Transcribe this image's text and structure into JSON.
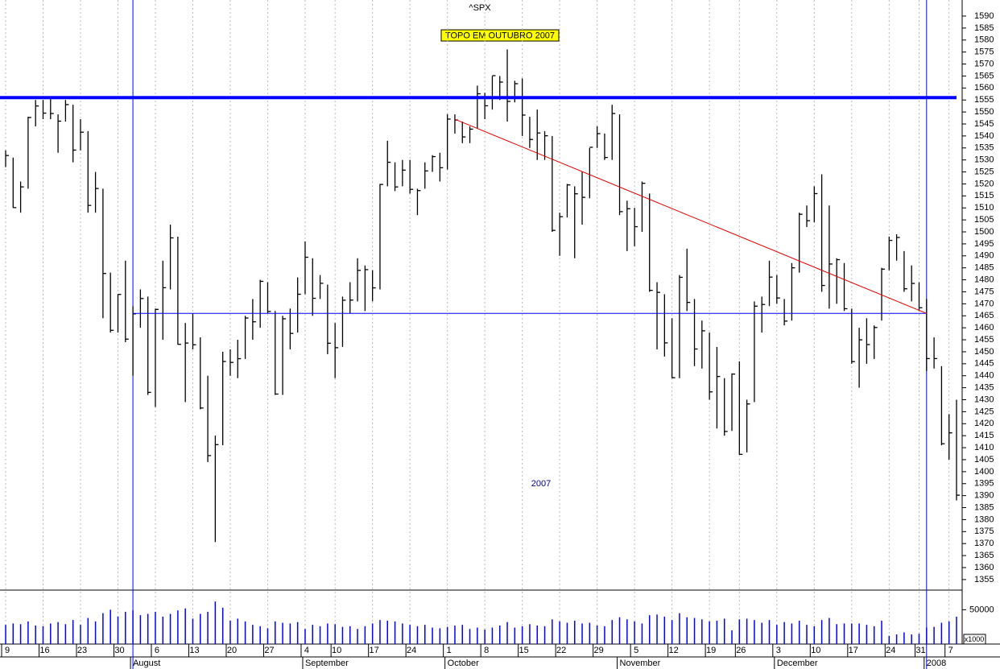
{
  "chart_data": {
    "type": "ohlc",
    "title": "^SPX",
    "annotation": "TOPO EM OUTUBRO 2007",
    "year_label": "2007",
    "volume_unit": "x1000",
    "x": [
      "2007-07-09",
      "2007-07-10",
      "2007-07-11",
      "2007-07-12",
      "2007-07-13",
      "2007-07-16",
      "2007-07-17",
      "2007-07-18",
      "2007-07-19",
      "2007-07-20",
      "2007-07-23",
      "2007-07-24",
      "2007-07-25",
      "2007-07-26",
      "2007-07-27",
      "2007-07-30",
      "2007-07-31",
      "2007-08-01",
      "2007-08-02",
      "2007-08-03",
      "2007-08-06",
      "2007-08-07",
      "2007-08-08",
      "2007-08-09",
      "2007-08-10",
      "2007-08-13",
      "2007-08-14",
      "2007-08-15",
      "2007-08-16",
      "2007-08-17",
      "2007-08-20",
      "2007-08-21",
      "2007-08-22",
      "2007-08-23",
      "2007-08-24",
      "2007-08-27",
      "2007-08-28",
      "2007-08-29",
      "2007-08-30",
      "2007-08-31",
      "2007-09-04",
      "2007-09-05",
      "2007-09-06",
      "2007-09-07",
      "2007-09-10",
      "2007-09-11",
      "2007-09-12",
      "2007-09-13",
      "2007-09-14",
      "2007-09-17",
      "2007-09-18",
      "2007-09-19",
      "2007-09-20",
      "2007-09-21",
      "2007-09-24",
      "2007-09-25",
      "2007-09-26",
      "2007-09-27",
      "2007-09-28",
      "2007-10-01",
      "2007-10-02",
      "2007-10-03",
      "2007-10-04",
      "2007-10-05",
      "2007-10-08",
      "2007-10-09",
      "2007-10-10",
      "2007-10-11",
      "2007-10-12",
      "2007-10-15",
      "2007-10-16",
      "2007-10-17",
      "2007-10-18",
      "2007-10-19",
      "2007-10-22",
      "2007-10-23",
      "2007-10-24",
      "2007-10-25",
      "2007-10-26",
      "2007-10-29",
      "2007-10-30",
      "2007-10-31",
      "2007-11-01",
      "2007-11-02",
      "2007-11-05",
      "2007-11-06",
      "2007-11-07",
      "2007-11-08",
      "2007-11-09",
      "2007-11-12",
      "2007-11-13",
      "2007-11-14",
      "2007-11-15",
      "2007-11-16",
      "2007-11-19",
      "2007-11-20",
      "2007-11-21",
      "2007-11-23",
      "2007-11-26",
      "2007-11-27",
      "2007-11-28",
      "2007-11-29",
      "2007-11-30",
      "2007-12-03",
      "2007-12-04",
      "2007-12-05",
      "2007-12-06",
      "2007-12-07",
      "2007-12-10",
      "2007-12-11",
      "2007-12-12",
      "2007-12-13",
      "2007-12-14",
      "2007-12-17",
      "2007-12-18",
      "2007-12-19",
      "2007-12-20",
      "2007-12-21",
      "2007-12-24",
      "2007-12-26",
      "2007-12-27",
      "2007-12-28",
      "2007-12-31",
      "2008-01-02",
      "2008-01-03",
      "2008-01-04",
      "2008-01-07",
      "2008-01-08"
    ],
    "high": [
      1534,
      1531,
      1521,
      1548,
      1555,
      1555,
      1556,
      1549,
      1555,
      1553,
      1547,
      1542,
      1525,
      1518,
      1483,
      1474,
      1488,
      1469,
      1476,
      1473,
      1468,
      1488,
      1503,
      1498,
      1462,
      1466,
      1456,
      1440,
      1415,
      1450,
      1451,
      1455,
      1465,
      1472,
      1480,
      1479,
      1467,
      1465,
      1468,
      1481,
      1496,
      1489,
      1482,
      1478,
      1462,
      1473,
      1479,
      1489,
      1486,
      1484,
      1520,
      1538,
      1529,
      1530,
      1530,
      1518,
      1529,
      1532,
      1533,
      1549,
      1549,
      1546,
      1544,
      1561,
      1558,
      1565,
      1565,
      1576.09,
      1563,
      1564,
      1548,
      1551,
      1542,
      1540,
      1508,
      1520,
      1519,
      1525,
      1535,
      1544,
      1541,
      1553,
      1549,
      1513,
      1510,
      1521,
      1516,
      1479,
      1474,
      1464,
      1482,
      1493,
      1472,
      1463,
      1458,
      1452,
      1439,
      1441,
      1446,
      1430,
      1471,
      1473,
      1488,
      1482,
      1472,
      1487,
      1508,
      1511,
      1519,
      1524,
      1511,
      1489,
      1487,
      1468,
      1460,
      1464,
      1461,
      1485,
      1498,
      1499,
      1492,
      1486,
      1479,
      1472,
      1456,
      1444,
      1424,
      1430
    ],
    "low": [
      1527,
      1510,
      1508,
      1518,
      1544,
      1547,
      1547,
      1533,
      1546,
      1529,
      1534,
      1508,
      1508,
      1464,
      1458,
      1458,
      1454,
      1440,
      1460,
      1432,
      1427,
      1455,
      1476,
      1453,
      1429,
      1451,
      1426,
      1404,
      1370.6,
      1411,
      1440,
      1439,
      1447,
      1455,
      1460,
      1466,
      1432,
      1432,
      1451,
      1458,
      1474,
      1465,
      1472,
      1449,
      1439,
      1452,
      1466,
      1471,
      1467,
      1471,
      1476,
      1519,
      1517,
      1519,
      1516,
      1507,
      1518,
      1525,
      1521,
      1526,
      1541,
      1537,
      1537,
      1543,
      1547,
      1551,
      1555,
      1546,
      1554,
      1540,
      1535,
      1530,
      1530,
      1500,
      1490,
      1506,
      1489,
      1503,
      1514,
      1535,
      1530,
      1530,
      1507,
      1492,
      1494,
      1500,
      1475,
      1451,
      1448,
      1439,
      1439,
      1467,
      1444,
      1443,
      1430,
      1418,
      1415,
      1417,
      1407,
      1408,
      1429,
      1458,
      1469,
      1470,
      1461,
      1463,
      1483,
      1502,
      1504,
      1475,
      1468,
      1470,
      1467,
      1445,
      1435,
      1445,
      1447,
      1463,
      1484,
      1488,
      1475,
      1471,
      1467,
      1442,
      1443,
      1411,
      1405,
      1388
    ],
    "close": [
      1531.85,
      1510.12,
      1518.76,
      1547.7,
      1552.5,
      1549.52,
      1549.37,
      1546.17,
      1553.08,
      1534.1,
      1541.57,
      1511.04,
      1518.09,
      1482.66,
      1458.95,
      1473.91,
      1455.27,
      1465.81,
      1472.2,
      1433.06,
      1467.67,
      1476.71,
      1497.49,
      1453.09,
      1453.64,
      1452.92,
      1426.54,
      1406.7,
      1411.27,
      1445.94,
      1445.55,
      1447.12,
      1464.07,
      1462.5,
      1479.37,
      1466.79,
      1432.36,
      1463.76,
      1457.64,
      1473.99,
      1489.42,
      1472.29,
      1478.55,
      1453.55,
      1451.7,
      1471.49,
      1471.56,
      1483.95,
      1484.25,
      1476.65,
      1519.78,
      1529.03,
      1518.75,
      1525.75,
      1517.73,
      1517.21,
      1525.42,
      1531.38,
      1526.75,
      1547.04,
      1546.63,
      1539.59,
      1542.84,
      1557.59,
      1552.58,
      1565.15,
      1562.47,
      1554.41,
      1561.8,
      1548.71,
      1538.53,
      1541.24,
      1540.08,
      1500.63,
      1506.33,
      1519.59,
      1515.88,
      1514.4,
      1535.28,
      1540.98,
      1531.02,
      1549.38,
      1508.44,
      1509.65,
      1502.17,
      1520.27,
      1475.62,
      1474.77,
      1453.7,
      1439.18,
      1481.05,
      1470.58,
      1451.15,
      1458.74,
      1433.27,
      1439.7,
      1416.77,
      1440.7,
      1407.22,
      1428.23,
      1469.02,
      1469.72,
      1481.14,
      1472.42,
      1462.79,
      1485.01,
      1507.34,
      1504.66,
      1515.96,
      1477.65,
      1486.59,
      1488.41,
      1467.95,
      1445.9,
      1454.98,
      1453,
      1460.12,
      1484.46,
      1496.45,
      1497.66,
      1476.27,
      1478.49,
      1468.36,
      1447.16,
      1447.16,
      1411.63,
      1416.18,
      1390.19
    ],
    "volume": [
      28000,
      30000,
      29000,
      33000,
      27000,
      26000,
      30000,
      32000,
      29000,
      35000,
      28000,
      38000,
      33000,
      45000,
      50000,
      40000,
      47000,
      49000,
      42000,
      44000,
      47000,
      40000,
      44000,
      49000,
      52000,
      37000,
      44000,
      47000,
      62000,
      53000,
      34000,
      37000,
      33000,
      28000,
      26000,
      23000,
      33000,
      31000,
      30000,
      32000,
      22000,
      28000,
      26000,
      30000,
      29000,
      25000,
      26000,
      22000,
      26000,
      30000,
      35000,
      34000,
      33000,
      30000,
      28000,
      26000,
      28000,
      24000,
      23000,
      25000,
      27000,
      28000,
      22000,
      24000,
      21000,
      24000,
      27000,
      32000,
      24000,
      26000,
      29000,
      27000,
      26000,
      36000,
      33000,
      31000,
      34000,
      30000,
      31000,
      27000,
      26000,
      35000,
      39000,
      36000,
      33000,
      30000,
      42000,
      43000,
      40000,
      35000,
      45000,
      39000,
      38000,
      36000,
      33000,
      34000,
      37000,
      20000,
      36000,
      37000,
      35000,
      31000,
      35000,
      28000,
      32000,
      30000,
      34000,
      28000,
      26000,
      35000,
      38000,
      29000,
      30000,
      30000,
      30000,
      28000,
      26000,
      34000,
      12000,
      14000,
      17000,
      14000,
      15000,
      24000,
      25000,
      31000,
      33000,
      40000
    ],
    "color": "#000000",
    "ylim": [
      1350.6,
      1596.7
    ],
    "yticks": [
      1355,
      1360,
      1365,
      1370,
      1375,
      1380,
      1385,
      1390,
      1395,
      1400,
      1405,
      1410,
      1415,
      1420,
      1425,
      1430,
      1435,
      1440,
      1445,
      1450,
      1455,
      1460,
      1465,
      1470,
      1475,
      1480,
      1485,
      1490,
      1495,
      1500,
      1505,
      1510,
      1515,
      1520,
      1525,
      1530,
      1535,
      1540,
      1545,
      1550,
      1555,
      1560,
      1565,
      1570,
      1575,
      1580,
      1585,
      1590
    ],
    "vlim": [
      0,
      78600
    ],
    "vticks": [
      50000
    ],
    "xticks": [
      {
        "value": "2007-07-09",
        "label": "9"
      },
      {
        "value": "2007-07-16",
        "label": "16"
      },
      {
        "value": "2007-07-23",
        "label": "23"
      },
      {
        "value": "2007-07-30",
        "label": "30"
      },
      {
        "value": "2007-08-06",
        "label": "6"
      },
      {
        "value": "2007-08-13",
        "label": "13"
      },
      {
        "value": "2007-08-20",
        "label": "20"
      },
      {
        "value": "2007-08-27",
        "label": "27"
      },
      {
        "value": "2007-09-04",
        "label": "4"
      },
      {
        "value": "2007-09-10",
        "label": "10"
      },
      {
        "value": "2007-09-17",
        "label": "17"
      },
      {
        "value": "2007-09-24",
        "label": "24"
      },
      {
        "value": "2007-10-01",
        "label": "1"
      },
      {
        "value": "2007-10-08",
        "label": "8"
      },
      {
        "value": "2007-10-15",
        "label": "15"
      },
      {
        "value": "2007-10-22",
        "label": "22"
      },
      {
        "value": "2007-10-29",
        "label": "29"
      },
      {
        "value": "2007-11-05",
        "label": "5"
      },
      {
        "value": "2007-11-12",
        "label": "12"
      },
      {
        "value": "2007-11-19",
        "label": "19"
      },
      {
        "value": "2007-11-26",
        "label": "26"
      },
      {
        "value": "2007-12-03",
        "label": "3"
      },
      {
        "value": "2007-12-10",
        "label": "10"
      },
      {
        "value": "2007-12-17",
        "label": "17"
      },
      {
        "value": "2007-12-24",
        "label": "24"
      },
      {
        "value": "2007-12-31",
        "label": "31"
      },
      {
        "value": "2008-01-07",
        "label": "7"
      }
    ],
    "months": [
      {
        "value": "2007-08-01",
        "label": "August"
      },
      {
        "value": "2007-09-04",
        "label": "September"
      },
      {
        "value": "2007-10-01",
        "label": "October"
      },
      {
        "value": "2007-11-01",
        "label": "November"
      },
      {
        "value": "2007-12-03",
        "label": "December"
      },
      {
        "value": "2008-01-02",
        "label": "2008"
      }
    ],
    "grid": true,
    "hlines": [
      {
        "value": 1556,
        "color": "#0000ff",
        "width": 4,
        "x": [
          "2007-07-09",
          "2008-01-08"
        ]
      },
      {
        "value": 1466,
        "color": "#0000ff",
        "width": 1,
        "x": [
          "2007-08-01",
          "2008-01-02"
        ]
      }
    ],
    "trendline": {
      "x": [
        "2007-10-02",
        "2008-01-02"
      ],
      "values": [
        1547,
        1466
      ],
      "color": "#e00000"
    },
    "vlines": [
      "2007-08-01",
      "2008-01-02"
    ],
    "vline_color": "#0000ff"
  }
}
